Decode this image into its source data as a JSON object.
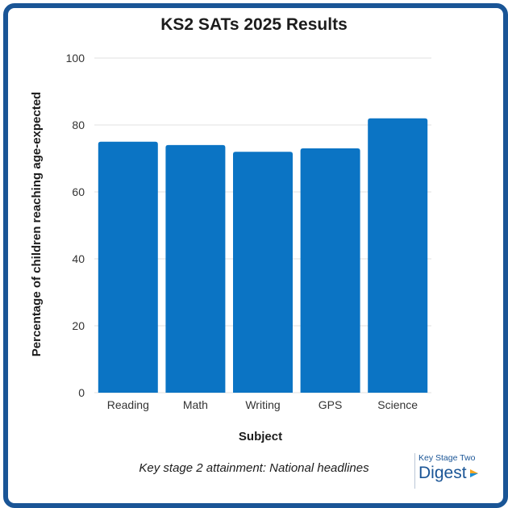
{
  "chart_data": {
    "type": "bar",
    "title": "KS2 SATs 2025 Results",
    "xlabel": "Subject",
    "ylabel": "Percentage of children reaching age-expected",
    "categories": [
      "Reading",
      "Math",
      "Writing",
      "GPS",
      "Science"
    ],
    "values": [
      75,
      74,
      72,
      73,
      82
    ],
    "ylim": [
      0,
      100
    ],
    "yticks": [
      "0",
      "20",
      "40",
      "60",
      "80",
      "100"
    ],
    "grid": true,
    "bar_color": "#0b74c4"
  },
  "caption": "Key stage 2 attainment: National headlines",
  "logo": {
    "top_text": "Key Stage Two",
    "main_text": "Digest"
  },
  "colors": {
    "frame": "#1a5596",
    "bars": "#0b74c4",
    "grid": "#e2e2e2"
  }
}
